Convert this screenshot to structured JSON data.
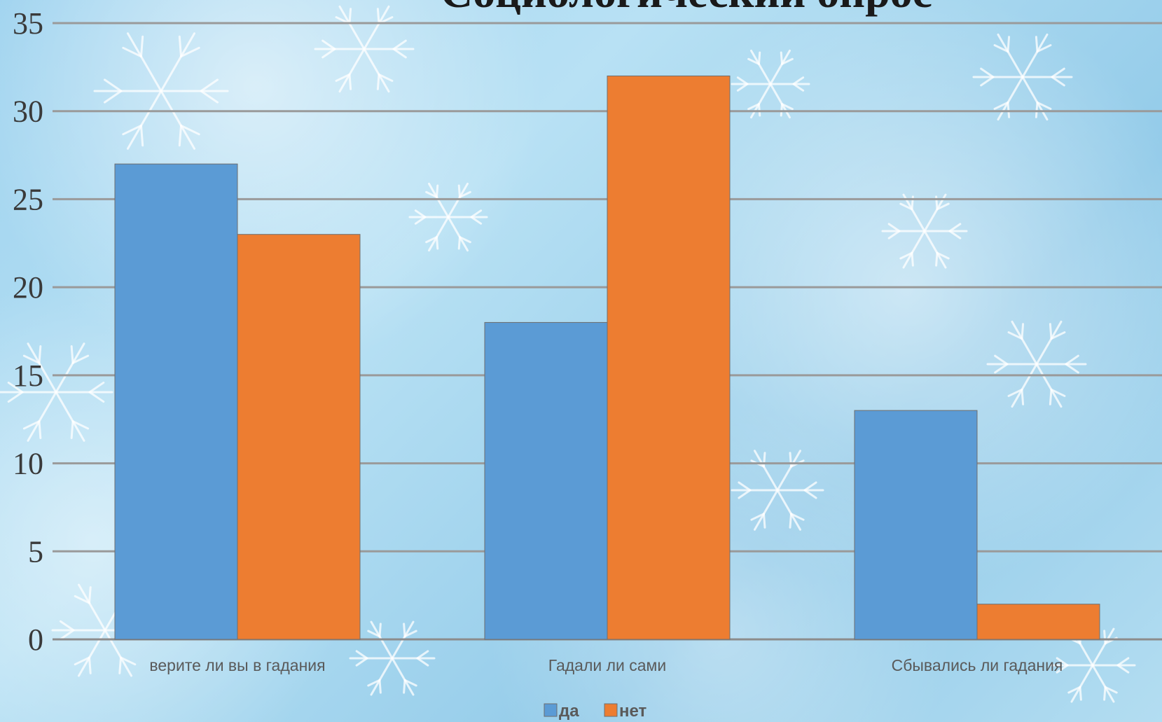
{
  "chart_data": {
    "type": "bar",
    "title": "Социологический опрос",
    "categories": [
      "верите ли вы в гадания",
      "Гадали ли сами",
      "Сбывались ли гадания"
    ],
    "series": [
      {
        "name": "да",
        "values": [
          27,
          18,
          13
        ],
        "color": "#5b9bd5"
      },
      {
        "name": "нет",
        "values": [
          23,
          32,
          2
        ],
        "color": "#ed7d31"
      }
    ],
    "yticks": [
      "0",
      "5",
      "10",
      "15",
      "20",
      "25",
      "30",
      "35"
    ],
    "ylim": [
      0,
      35
    ],
    "grid": true,
    "legend": "bottom-center"
  }
}
